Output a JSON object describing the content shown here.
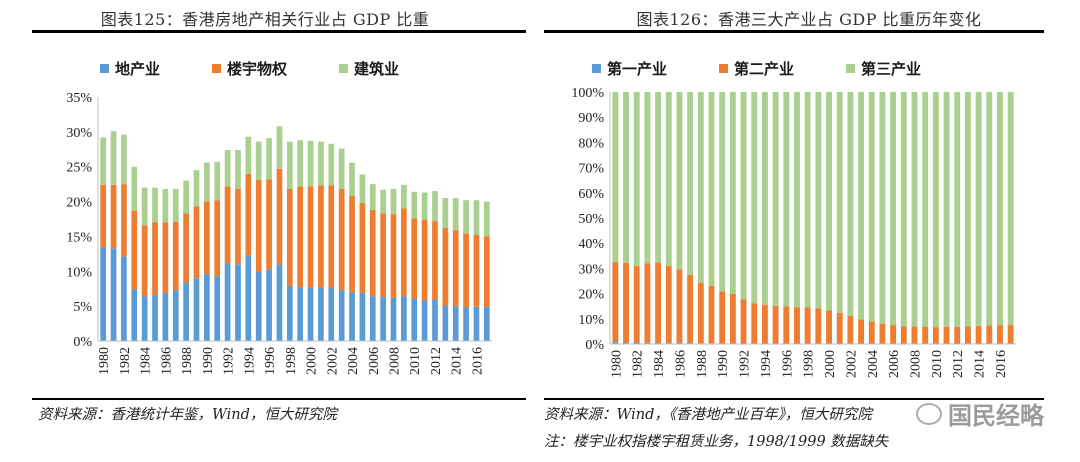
{
  "colors": {
    "first": "#5B9BD5",
    "second": "#ED7D31",
    "third": "#A9D08E"
  },
  "left_panel": {
    "title": "图表125：香港房地产相关行业占 GDP 比重",
    "source": "资料来源：香港统计年鉴，Wind，恒大研究院"
  },
  "right_panel": {
    "title": "图表126：香港三大产业占 GDP 比重历年变化",
    "source": "资料来源：Wind，《香港地产业百年》，恒大研究院",
    "note": "注：楼宇业权指楼宇租赁业务，1998/1999 数据缺失"
  },
  "watermark": {
    "text": "国民经略",
    "icon": "wechat-icon"
  },
  "chart_data": [
    {
      "type": "bar",
      "stacked": true,
      "title": "图表125：香港房地产相关行业占 GDP 比重",
      "categories": [
        "1980",
        "1981",
        "1982",
        "1983",
        "1984",
        "1985",
        "1986",
        "1987",
        "1988",
        "1989",
        "1990",
        "1991",
        "1992",
        "1993",
        "1994",
        "1995",
        "1996",
        "1997",
        "1998",
        "1999",
        "2000",
        "2001",
        "2002",
        "2003",
        "2004",
        "2005",
        "2006",
        "2007",
        "2008",
        "2009",
        "2010",
        "2011",
        "2012",
        "2013",
        "2014",
        "2015",
        "2016",
        "2017"
      ],
      "x_tick_labels": [
        "1980",
        "1982",
        "1984",
        "1986",
        "1988",
        "1990",
        "1992",
        "1994",
        "1996",
        "1998",
        "2000",
        "2002",
        "2004",
        "2006",
        "2008",
        "2010",
        "2012",
        "2014",
        "2016"
      ],
      "series": [
        {
          "name": "地产业",
          "color_key": "first",
          "values": [
            13.5,
            13.3,
            12.1,
            7.4,
            6.4,
            6.6,
            6.9,
            7.3,
            8.4,
            9.0,
            9.6,
            9.3,
            11.1,
            11.0,
            12.3,
            9.9,
            10.3,
            11.0,
            7.9,
            7.7,
            7.7,
            7.7,
            7.7,
            7.3,
            7.0,
            6.9,
            6.4,
            6.3,
            6.2,
            6.4,
            6.1,
            5.8,
            5.9,
            5.1,
            5.0,
            4.8,
            4.9,
            4.9
          ]
        },
        {
          "name": "楼宇物权",
          "color_key": "second",
          "values": [
            8.9,
            9.1,
            10.4,
            11.3,
            10.2,
            10.4,
            10.1,
            9.8,
            9.9,
            10.3,
            10.4,
            10.9,
            11.1,
            10.8,
            11.7,
            13.2,
            12.9,
            13.7,
            13.9,
            14.5,
            14.5,
            14.6,
            14.6,
            14.5,
            13.8,
            12.9,
            12.4,
            12.0,
            12.0,
            12.6,
            11.5,
            11.6,
            11.3,
            11.1,
            10.9,
            10.6,
            10.3,
            10.1
          ]
        },
        {
          "name": "建筑业",
          "color_key": "third",
          "values": [
            6.8,
            7.7,
            7.1,
            6.3,
            5.4,
            5.0,
            4.8,
            4.7,
            4.7,
            5.2,
            5.6,
            5.5,
            5.2,
            5.6,
            5.3,
            5.5,
            5.9,
            6.1,
            6.8,
            6.6,
            6.5,
            6.3,
            6.0,
            5.8,
            4.8,
            4.1,
            3.7,
            3.4,
            3.6,
            3.4,
            3.8,
            3.9,
            4.3,
            4.3,
            4.6,
            4.8,
            5.0,
            5.0
          ]
        }
      ],
      "ylim": [
        0,
        35
      ],
      "y_ticks": [
        "0%",
        "5%",
        "10%",
        "15%",
        "20%",
        "25%",
        "30%",
        "35%"
      ],
      "legend_position": "top"
    },
    {
      "type": "bar",
      "stacked": true,
      "title": "图表126：香港三大产业占 GDP 比重历年变化",
      "categories": [
        "1980",
        "1981",
        "1982",
        "1983",
        "1984",
        "1985",
        "1986",
        "1987",
        "1988",
        "1989",
        "1990",
        "1991",
        "1992",
        "1993",
        "1994",
        "1995",
        "1996",
        "1997",
        "1998",
        "1999",
        "2000",
        "2001",
        "2002",
        "2003",
        "2004",
        "2005",
        "2006",
        "2007",
        "2008",
        "2009",
        "2010",
        "2011",
        "2012",
        "2013",
        "2014",
        "2015",
        "2016",
        "2017"
      ],
      "x_tick_labels": [
        "1980",
        "1982",
        "1984",
        "1986",
        "1988",
        "1990",
        "1992",
        "1994",
        "1996",
        "1998",
        "2000",
        "2002",
        "2004",
        "2006",
        "2008",
        "2010",
        "2012",
        "2014",
        "2016"
      ],
      "series": [
        {
          "name": "第一产业",
          "color_key": "first",
          "values": [
            0.8,
            0.7,
            0.6,
            0.5,
            0.5,
            0.5,
            0.4,
            0.4,
            0.3,
            0.3,
            0.2,
            0.2,
            0.2,
            0.2,
            0.1,
            0.1,
            0.1,
            0.1,
            0.1,
            0.1,
            0.1,
            0.1,
            0.1,
            0.1,
            0.1,
            0.1,
            0.1,
            0.1,
            0.1,
            0.1,
            0.1,
            0.1,
            0.1,
            0.1,
            0.1,
            0.1,
            0.1,
            0.1
          ]
        },
        {
          "name": "第二产业",
          "color_key": "second",
          "values": [
            31.7,
            31.5,
            30.3,
            31.5,
            31.8,
            30.5,
            29.2,
            27.0,
            24.0,
            22.8,
            20.6,
            19.7,
            17.6,
            16.0,
            15.5,
            15.1,
            14.8,
            14.5,
            14.5,
            14.1,
            13.3,
            12.3,
            11.0,
            9.7,
            8.8,
            8.0,
            7.4,
            6.9,
            6.8,
            6.8,
            6.6,
            6.7,
            6.7,
            6.9,
            7.1,
            7.3,
            7.4,
            7.4
          ]
        },
        {
          "name": "第三产业",
          "color_key": "third",
          "values": [
            67.5,
            67.8,
            69.1,
            68.0,
            67.7,
            69.0,
            70.4,
            72.6,
            75.7,
            76.9,
            79.2,
            80.1,
            82.2,
            83.8,
            84.4,
            84.8,
            85.1,
            85.4,
            85.4,
            85.8,
            86.6,
            87.6,
            88.9,
            90.2,
            91.1,
            91.9,
            92.5,
            93.0,
            93.1,
            93.1,
            93.3,
            93.2,
            93.2,
            93.0,
            92.8,
            92.6,
            92.5,
            92.5
          ]
        }
      ],
      "ylim": [
        0,
        100
      ],
      "y_ticks": [
        "0%",
        "10%",
        "20%",
        "30%",
        "40%",
        "50%",
        "60%",
        "70%",
        "80%",
        "90%",
        "100%"
      ],
      "legend_position": "top"
    }
  ]
}
